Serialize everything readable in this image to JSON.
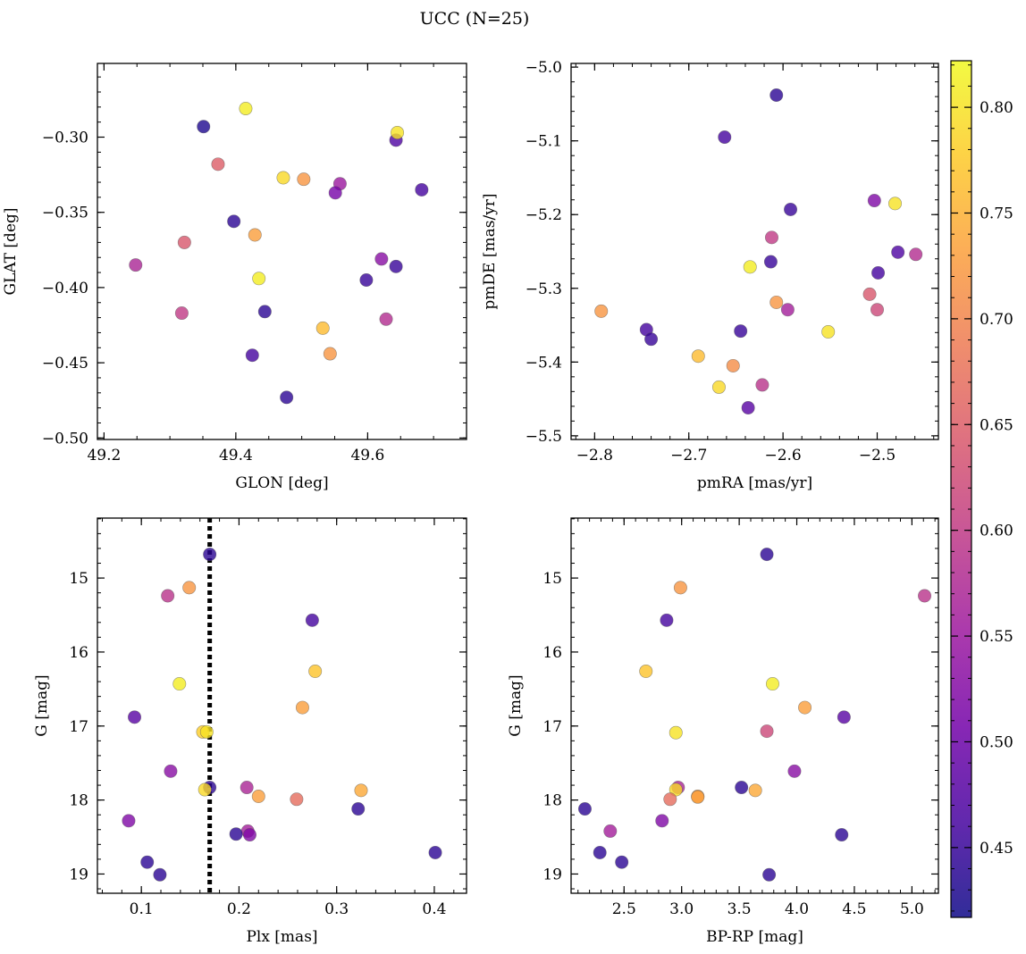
{
  "title": "UCC (N=25)",
  "colors": {
    "cmap": [
      "#0d0887",
      "#46039f",
      "#7201a8",
      "#9c179e",
      "#bd3786",
      "#d8576b",
      "#ed7953",
      "#fb9f3a",
      "#fdca26",
      "#f0f921"
    ],
    "marker_alpha": 0.8,
    "marker_edge": "#555555"
  },
  "colorbar": {
    "vmin": 0.417,
    "vmax": 0.822,
    "ticks": [
      0.45,
      0.5,
      0.55,
      0.6,
      0.65,
      0.7,
      0.75,
      0.8
    ],
    "tick_labels": [
      "0.45",
      "0.50",
      "0.55",
      "0.60",
      "0.65",
      "0.70",
      "0.75",
      "0.80"
    ]
  },
  "chart_data": [
    {
      "type": "scatter",
      "name": "glon-glat",
      "xlabel": "GLON [deg]",
      "ylabel": "GLAT [deg]",
      "xlim": [
        49.19,
        49.75
      ],
      "ylim": [
        -0.501,
        -0.251
      ],
      "x_ticks": [
        49.2,
        49.4,
        49.6
      ],
      "x_tick_labels": [
        "49.2",
        "49.4",
        "49.6"
      ],
      "y_ticks": [
        -0.3,
        -0.35,
        -0.4,
        -0.45,
        -0.5
      ],
      "y_tick_labels": [
        "−0.30",
        "−0.35",
        "−0.40",
        "−0.45",
        "−0.50"
      ],
      "invert_y": false,
      "x_minor_step": 0.05,
      "y_minor_step": 0.01,
      "points": [
        {
          "x": 49.415,
          "y": -0.281,
          "c": 0.81
        },
        {
          "x": 49.351,
          "y": -0.293,
          "c": 0.43
        },
        {
          "x": 49.643,
          "y": -0.302,
          "c": 0.47
        },
        {
          "x": 49.645,
          "y": -0.297,
          "c": 0.8
        },
        {
          "x": 49.373,
          "y": -0.318,
          "c": 0.65
        },
        {
          "x": 49.472,
          "y": -0.327,
          "c": 0.79
        },
        {
          "x": 49.503,
          "y": -0.328,
          "c": 0.72
        },
        {
          "x": 49.558,
          "y": -0.331,
          "c": 0.55
        },
        {
          "x": 49.551,
          "y": -0.337,
          "c": 0.51
        },
        {
          "x": 49.682,
          "y": -0.335,
          "c": 0.46
        },
        {
          "x": 49.397,
          "y": -0.356,
          "c": 0.44
        },
        {
          "x": 49.429,
          "y": -0.365,
          "c": 0.73
        },
        {
          "x": 49.322,
          "y": -0.37,
          "c": 0.64
        },
        {
          "x": 49.248,
          "y": -0.385,
          "c": 0.57
        },
        {
          "x": 49.621,
          "y": -0.381,
          "c": 0.53
        },
        {
          "x": 49.643,
          "y": -0.386,
          "c": 0.45
        },
        {
          "x": 49.435,
          "y": -0.394,
          "c": 0.81
        },
        {
          "x": 49.598,
          "y": -0.395,
          "c": 0.45
        },
        {
          "x": 49.318,
          "y": -0.417,
          "c": 0.6
        },
        {
          "x": 49.444,
          "y": -0.416,
          "c": 0.44
        },
        {
          "x": 49.628,
          "y": -0.421,
          "c": 0.58
        },
        {
          "x": 49.532,
          "y": -0.427,
          "c": 0.76
        },
        {
          "x": 49.425,
          "y": -0.445,
          "c": 0.46
        },
        {
          "x": 49.543,
          "y": -0.444,
          "c": 0.72
        },
        {
          "x": 49.477,
          "y": -0.473,
          "c": 0.44
        }
      ]
    },
    {
      "type": "scatter",
      "name": "pmra-pmde",
      "xlabel": "pmRA [mas/yr]",
      "ylabel": "pmDE [mas/yr]",
      "xlim": [
        -2.825,
        -2.435
      ],
      "ylim": [
        -5.505,
        -4.995
      ],
      "x_ticks": [
        -2.8,
        -2.7,
        -2.6,
        -2.5
      ],
      "x_tick_labels": [
        "−2.8",
        "−2.7",
        "−2.6",
        "−2.5"
      ],
      "y_ticks": [
        -5.0,
        -5.1,
        -5.2,
        -5.3,
        -5.4,
        -5.5
      ],
      "y_tick_labels": [
        "−5.0",
        "−5.1",
        "−5.2",
        "−5.3",
        "−5.4",
        "−5.5"
      ],
      "invert_y": false,
      "x_minor_step": 0.02,
      "y_minor_step": 0.02,
      "points": [
        {
          "x": -2.607,
          "y": -5.038,
          "c": 0.44
        },
        {
          "x": -2.662,
          "y": -5.095,
          "c": 0.46
        },
        {
          "x": -2.503,
          "y": -5.181,
          "c": 0.52
        },
        {
          "x": -2.481,
          "y": -5.185,
          "c": 0.8
        },
        {
          "x": -2.592,
          "y": -5.193,
          "c": 0.45
        },
        {
          "x": -2.612,
          "y": -5.231,
          "c": 0.6
        },
        {
          "x": -2.478,
          "y": -5.251,
          "c": 0.47
        },
        {
          "x": -2.459,
          "y": -5.254,
          "c": 0.58
        },
        {
          "x": -2.613,
          "y": -5.264,
          "c": 0.45
        },
        {
          "x": -2.635,
          "y": -5.271,
          "c": 0.81
        },
        {
          "x": -2.499,
          "y": -5.279,
          "c": 0.46
        },
        {
          "x": -2.508,
          "y": -5.308,
          "c": 0.64
        },
        {
          "x": -2.607,
          "y": -5.319,
          "c": 0.72
        },
        {
          "x": -2.595,
          "y": -5.329,
          "c": 0.56
        },
        {
          "x": -2.5,
          "y": -5.329,
          "c": 0.62
        },
        {
          "x": -2.793,
          "y": -5.331,
          "c": 0.72
        },
        {
          "x": -2.745,
          "y": -5.356,
          "c": 0.46
        },
        {
          "x": -2.645,
          "y": -5.358,
          "c": 0.45
        },
        {
          "x": -2.552,
          "y": -5.359,
          "c": 0.8
        },
        {
          "x": -2.74,
          "y": -5.369,
          "c": 0.45
        },
        {
          "x": -2.69,
          "y": -5.392,
          "c": 0.76
        },
        {
          "x": -2.653,
          "y": -5.405,
          "c": 0.71
        },
        {
          "x": -2.622,
          "y": -5.431,
          "c": 0.59
        },
        {
          "x": -2.668,
          "y": -5.434,
          "c": 0.79
        },
        {
          "x": -2.637,
          "y": -5.462,
          "c": 0.48
        }
      ]
    },
    {
      "type": "scatter",
      "name": "plx-g",
      "xlabel": "Plx [mas]",
      "ylabel": "G [mag]",
      "xlim": [
        0.055,
        0.433
      ],
      "ylim": [
        19.26,
        14.19
      ],
      "x_ticks": [
        0.1,
        0.2,
        0.3,
        0.4
      ],
      "x_tick_labels": [
        "0.1",
        "0.2",
        "0.3",
        "0.4"
      ],
      "y_ticks": [
        15,
        16,
        17,
        18,
        19
      ],
      "y_tick_labels": [
        "15",
        "16",
        "17",
        "18",
        "19"
      ],
      "invert_y": true,
      "x_minor_step": 0.02,
      "y_minor_step": 0.2,
      "vline": {
        "x": 0.17,
        "style": "dotted",
        "color": "#000000"
      },
      "points": [
        {
          "x": 0.17,
          "y": 14.68,
          "c": 0.44
        },
        {
          "x": 0.127,
          "y": 15.24,
          "c": 0.59
        },
        {
          "x": 0.149,
          "y": 15.13,
          "c": 0.72
        },
        {
          "x": 0.275,
          "y": 15.57,
          "c": 0.46
        },
        {
          "x": 0.278,
          "y": 16.26,
          "c": 0.77
        },
        {
          "x": 0.139,
          "y": 16.43,
          "c": 0.81
        },
        {
          "x": 0.265,
          "y": 16.75,
          "c": 0.73
        },
        {
          "x": 0.093,
          "y": 16.88,
          "c": 0.48
        },
        {
          "x": 0.163,
          "y": 17.08,
          "c": 0.78
        },
        {
          "x": 0.13,
          "y": 17.61,
          "c": 0.53
        },
        {
          "x": 0.208,
          "y": 17.83,
          "c": 0.57
        },
        {
          "x": 0.17,
          "y": 17.83,
          "c": 0.44
        },
        {
          "x": 0.165,
          "y": 17.86,
          "c": 0.79
        },
        {
          "x": 0.325,
          "y": 17.87,
          "c": 0.74
        },
        {
          "x": 0.22,
          "y": 17.95,
          "c": 0.73
        },
        {
          "x": 0.259,
          "y": 17.99,
          "c": 0.67
        },
        {
          "x": 0.322,
          "y": 18.12,
          "c": 0.44
        },
        {
          "x": 0.087,
          "y": 18.28,
          "c": 0.52
        },
        {
          "x": 0.209,
          "y": 18.42,
          "c": 0.56
        },
        {
          "x": 0.211,
          "y": 18.47,
          "c": 0.52
        },
        {
          "x": 0.197,
          "y": 18.46,
          "c": 0.44
        },
        {
          "x": 0.401,
          "y": 18.71,
          "c": 0.44
        },
        {
          "x": 0.106,
          "y": 18.84,
          "c": 0.44
        },
        {
          "x": 0.119,
          "y": 19.01,
          "c": 0.44
        },
        {
          "x": 0.167,
          "y": 17.08,
          "c": 0.8
        }
      ]
    },
    {
      "type": "scatter",
      "name": "bprp-g",
      "xlabel": "BP-RP [mag]",
      "ylabel": "G [mag]",
      "xlim": [
        2.04,
        5.23
      ],
      "ylim": [
        19.26,
        14.19
      ],
      "x_ticks": [
        2.5,
        3.0,
        3.5,
        4.0,
        4.5,
        5.0
      ],
      "x_tick_labels": [
        "2.5",
        "3.0",
        "3.5",
        "4.0",
        "4.5",
        "5.0"
      ],
      "y_ticks": [
        15,
        16,
        17,
        18,
        19
      ],
      "y_tick_labels": [
        "15",
        "16",
        "17",
        "18",
        "19"
      ],
      "invert_y": true,
      "x_minor_step": 0.1,
      "y_minor_step": 0.2,
      "points": [
        {
          "x": 3.74,
          "y": 14.68,
          "c": 0.44
        },
        {
          "x": 5.11,
          "y": 15.24,
          "c": 0.59
        },
        {
          "x": 2.99,
          "y": 15.13,
          "c": 0.72
        },
        {
          "x": 2.87,
          "y": 15.57,
          "c": 0.46
        },
        {
          "x": 2.69,
          "y": 16.26,
          "c": 0.77
        },
        {
          "x": 3.79,
          "y": 16.43,
          "c": 0.81
        },
        {
          "x": 4.07,
          "y": 16.75,
          "c": 0.73
        },
        {
          "x": 4.41,
          "y": 16.88,
          "c": 0.48
        },
        {
          "x": 2.95,
          "y": 17.09,
          "c": 0.8
        },
        {
          "x": 3.74,
          "y": 17.07,
          "c": 0.62
        },
        {
          "x": 3.98,
          "y": 17.61,
          "c": 0.53
        },
        {
          "x": 2.97,
          "y": 17.83,
          "c": 0.57
        },
        {
          "x": 3.52,
          "y": 17.83,
          "c": 0.44
        },
        {
          "x": 2.95,
          "y": 17.86,
          "c": 0.79
        },
        {
          "x": 3.64,
          "y": 17.87,
          "c": 0.74
        },
        {
          "x": 3.14,
          "y": 17.95,
          "c": 0.73
        },
        {
          "x": 2.9,
          "y": 17.99,
          "c": 0.67
        },
        {
          "x": 2.16,
          "y": 18.12,
          "c": 0.44
        },
        {
          "x": 2.83,
          "y": 18.28,
          "c": 0.52
        },
        {
          "x": 2.38,
          "y": 18.42,
          "c": 0.56
        },
        {
          "x": 4.39,
          "y": 18.47,
          "c": 0.44
        },
        {
          "x": 2.29,
          "y": 18.71,
          "c": 0.44
        },
        {
          "x": 2.48,
          "y": 18.84,
          "c": 0.44
        },
        {
          "x": 3.76,
          "y": 19.01,
          "c": 0.44
        },
        {
          "x": 3.14,
          "y": 17.96,
          "c": 0.73
        }
      ]
    }
  ]
}
